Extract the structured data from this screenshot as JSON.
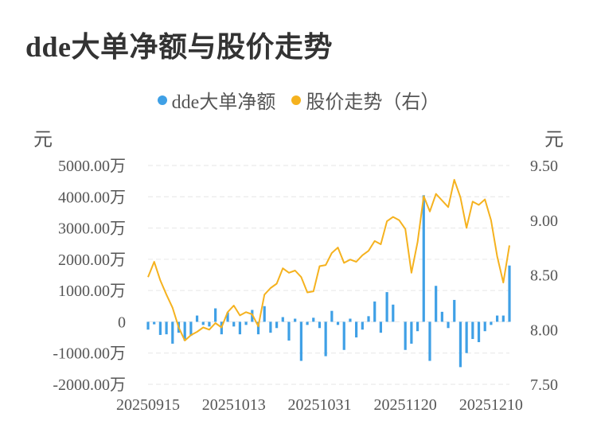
{
  "header": {
    "title": "dde大单净额与股价走势"
  },
  "legend": {
    "bar_label": "dde大单净额",
    "line_label": "股价走势（右）"
  },
  "axes": {
    "left_unit": "元",
    "right_unit": "元"
  },
  "colors": {
    "bar": "#3fa0e6",
    "line": "#f5b21f",
    "grid": "#e6e6e6"
  },
  "chart_data": {
    "type": "bar",
    "title": "dde大单净额与股价走势",
    "x_tick_labels": [
      "20250915",
      "20251013",
      "20251031",
      "20251120",
      "20251210"
    ],
    "x_tick_indices": [
      0,
      14,
      28,
      42,
      56
    ],
    "y_left": {
      "ticks": [
        5000,
        4000,
        3000,
        2000,
        1000,
        0,
        -1000,
        -2000
      ],
      "tick_labels": [
        "5000.00万",
        "4000.00万",
        "3000.00万",
        "2000.00万",
        "1000.00万",
        "0",
        "-1000.00万",
        "-2000.00万"
      ],
      "ylim": [
        -2000,
        5000
      ],
      "unit": "万元"
    },
    "y_right": {
      "ticks": [
        9.5,
        9.0,
        8.5,
        8.0,
        7.5
      ],
      "tick_labels": [
        "9.50",
        "9.00",
        "8.50",
        "8.00",
        "7.50"
      ],
      "ylim": [
        7.5,
        9.5
      ]
    },
    "grid": true,
    "series": [
      {
        "name": "dde大单净额",
        "type": "bar",
        "axis": "left",
        "values": [
          -250,
          -80,
          -420,
          -400,
          -700,
          -350,
          -600,
          -450,
          200,
          -100,
          -150,
          430,
          -400,
          300,
          -150,
          -400,
          -100,
          380,
          -400,
          500,
          -350,
          -200,
          150,
          -600,
          100,
          -1250,
          -100,
          130,
          -200,
          -1100,
          350,
          -100,
          -900,
          100,
          -500,
          -250,
          180,
          650,
          -350,
          950,
          550,
          0,
          -900,
          -700,
          -300,
          4050,
          -1250,
          1150,
          320,
          -200,
          700,
          -1450,
          -1000,
          -550,
          -650,
          -300,
          -100,
          200,
          200,
          1800
        ]
      },
      {
        "name": "股价走势（右）",
        "type": "line",
        "axis": "right",
        "values": [
          8.48,
          8.62,
          8.45,
          8.32,
          8.2,
          8.02,
          7.9,
          7.95,
          7.98,
          8.02,
          8.0,
          8.06,
          8.02,
          8.16,
          8.22,
          8.13,
          8.16,
          8.14,
          8.03,
          8.32,
          8.38,
          8.42,
          8.56,
          8.52,
          8.54,
          8.48,
          8.34,
          8.35,
          8.58,
          8.59,
          8.7,
          8.75,
          8.61,
          8.64,
          8.62,
          8.68,
          8.72,
          8.81,
          8.78,
          8.99,
          9.03,
          9.0,
          8.92,
          8.52,
          8.8,
          9.22,
          9.08,
          9.24,
          9.18,
          9.12,
          9.37,
          9.21,
          8.93,
          9.17,
          9.14,
          9.19,
          9.0,
          8.67,
          8.43,
          8.77
        ]
      }
    ]
  }
}
